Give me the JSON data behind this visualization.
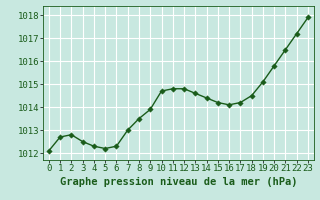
{
  "x": [
    0,
    1,
    2,
    3,
    4,
    5,
    6,
    7,
    8,
    9,
    10,
    11,
    12,
    13,
    14,
    15,
    16,
    17,
    18,
    19,
    20,
    21,
    22,
    23
  ],
  "y": [
    1012.1,
    1012.7,
    1012.8,
    1012.5,
    1012.3,
    1012.2,
    1012.3,
    1013.0,
    1013.5,
    1013.9,
    1014.7,
    1014.8,
    1014.8,
    1014.6,
    1014.4,
    1014.2,
    1014.1,
    1014.2,
    1014.5,
    1015.1,
    1015.8,
    1016.5,
    1017.2,
    1017.9
  ],
  "line_color": "#1a5c1a",
  "marker_color": "#1a5c1a",
  "bg_color": "#c8e8e0",
  "grid_color": "#ffffff",
  "xlabel": "Graphe pression niveau de la mer (hPa)",
  "xlabel_color": "#1a5c1a",
  "ylabel_ticks": [
    1012,
    1013,
    1014,
    1015,
    1016,
    1017,
    1018
  ],
  "ylim": [
    1011.7,
    1018.4
  ],
  "xlim": [
    -0.5,
    23.5
  ],
  "tick_label_color": "#1a5c1a",
  "tick_label_fontsize": 6.5,
  "xlabel_fontsize": 7.5,
  "marker_size": 2.8,
  "line_width": 1.0
}
